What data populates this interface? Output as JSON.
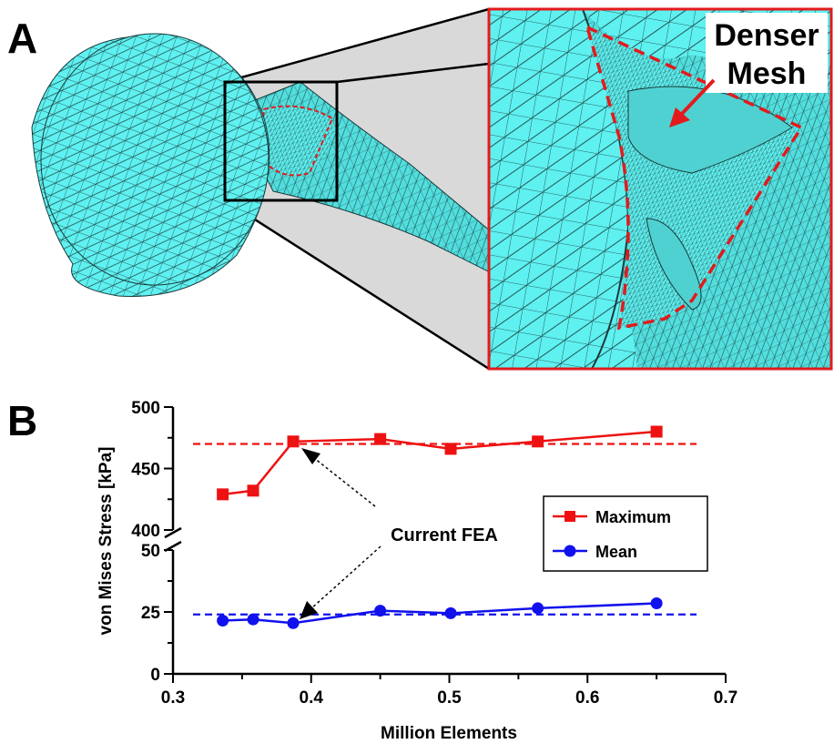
{
  "panel_labels": {
    "a": "A",
    "b": "B"
  },
  "mesh_image": {
    "callout": [
      "Denser",
      "Mesh"
    ],
    "mesh_color": "#5ff0f0",
    "line_color": "#1a3a3a",
    "highlight_color": "#e31a1c"
  },
  "annotation": {
    "text": "Current FEA"
  },
  "chart_data": {
    "type": "line",
    "title": "",
    "xlabel": "Million Elements",
    "ylabel": "von Mises Stress [kPa]",
    "xlim": [
      0.3,
      0.7
    ],
    "x_ticks": [
      "0.3",
      "0.4",
      "0.5",
      "0.6",
      "0.7"
    ],
    "y_segments": [
      {
        "range": [
          0,
          50
        ],
        "ticks": [
          "0",
          "25",
          "50"
        ]
      },
      {
        "range": [
          400,
          500
        ],
        "ticks": [
          "400",
          "450",
          "500"
        ]
      }
    ],
    "axis_break": true,
    "legend_position": "right",
    "series": [
      {
        "name": "Maximum",
        "color": "#ee1111",
        "marker": "square",
        "x": [
          0.336,
          0.358,
          0.387,
          0.45,
          0.501,
          0.564,
          0.65
        ],
        "y": [
          429,
          432,
          472,
          474,
          466,
          472,
          480
        ]
      },
      {
        "name": "Mean",
        "color": "#1111ee",
        "marker": "circle",
        "x": [
          0.336,
          0.358,
          0.387,
          0.45,
          0.501,
          0.564,
          0.65
        ],
        "y": [
          21.5,
          22,
          20.5,
          25.5,
          24.5,
          26.5,
          28.5
        ]
      }
    ],
    "reference_lines": [
      {
        "series": "Maximum",
        "y": 470,
        "style": "dashed",
        "color": "#ee1111"
      },
      {
        "series": "Mean",
        "y": 24,
        "style": "dashed",
        "color": "#1111ee"
      }
    ]
  }
}
